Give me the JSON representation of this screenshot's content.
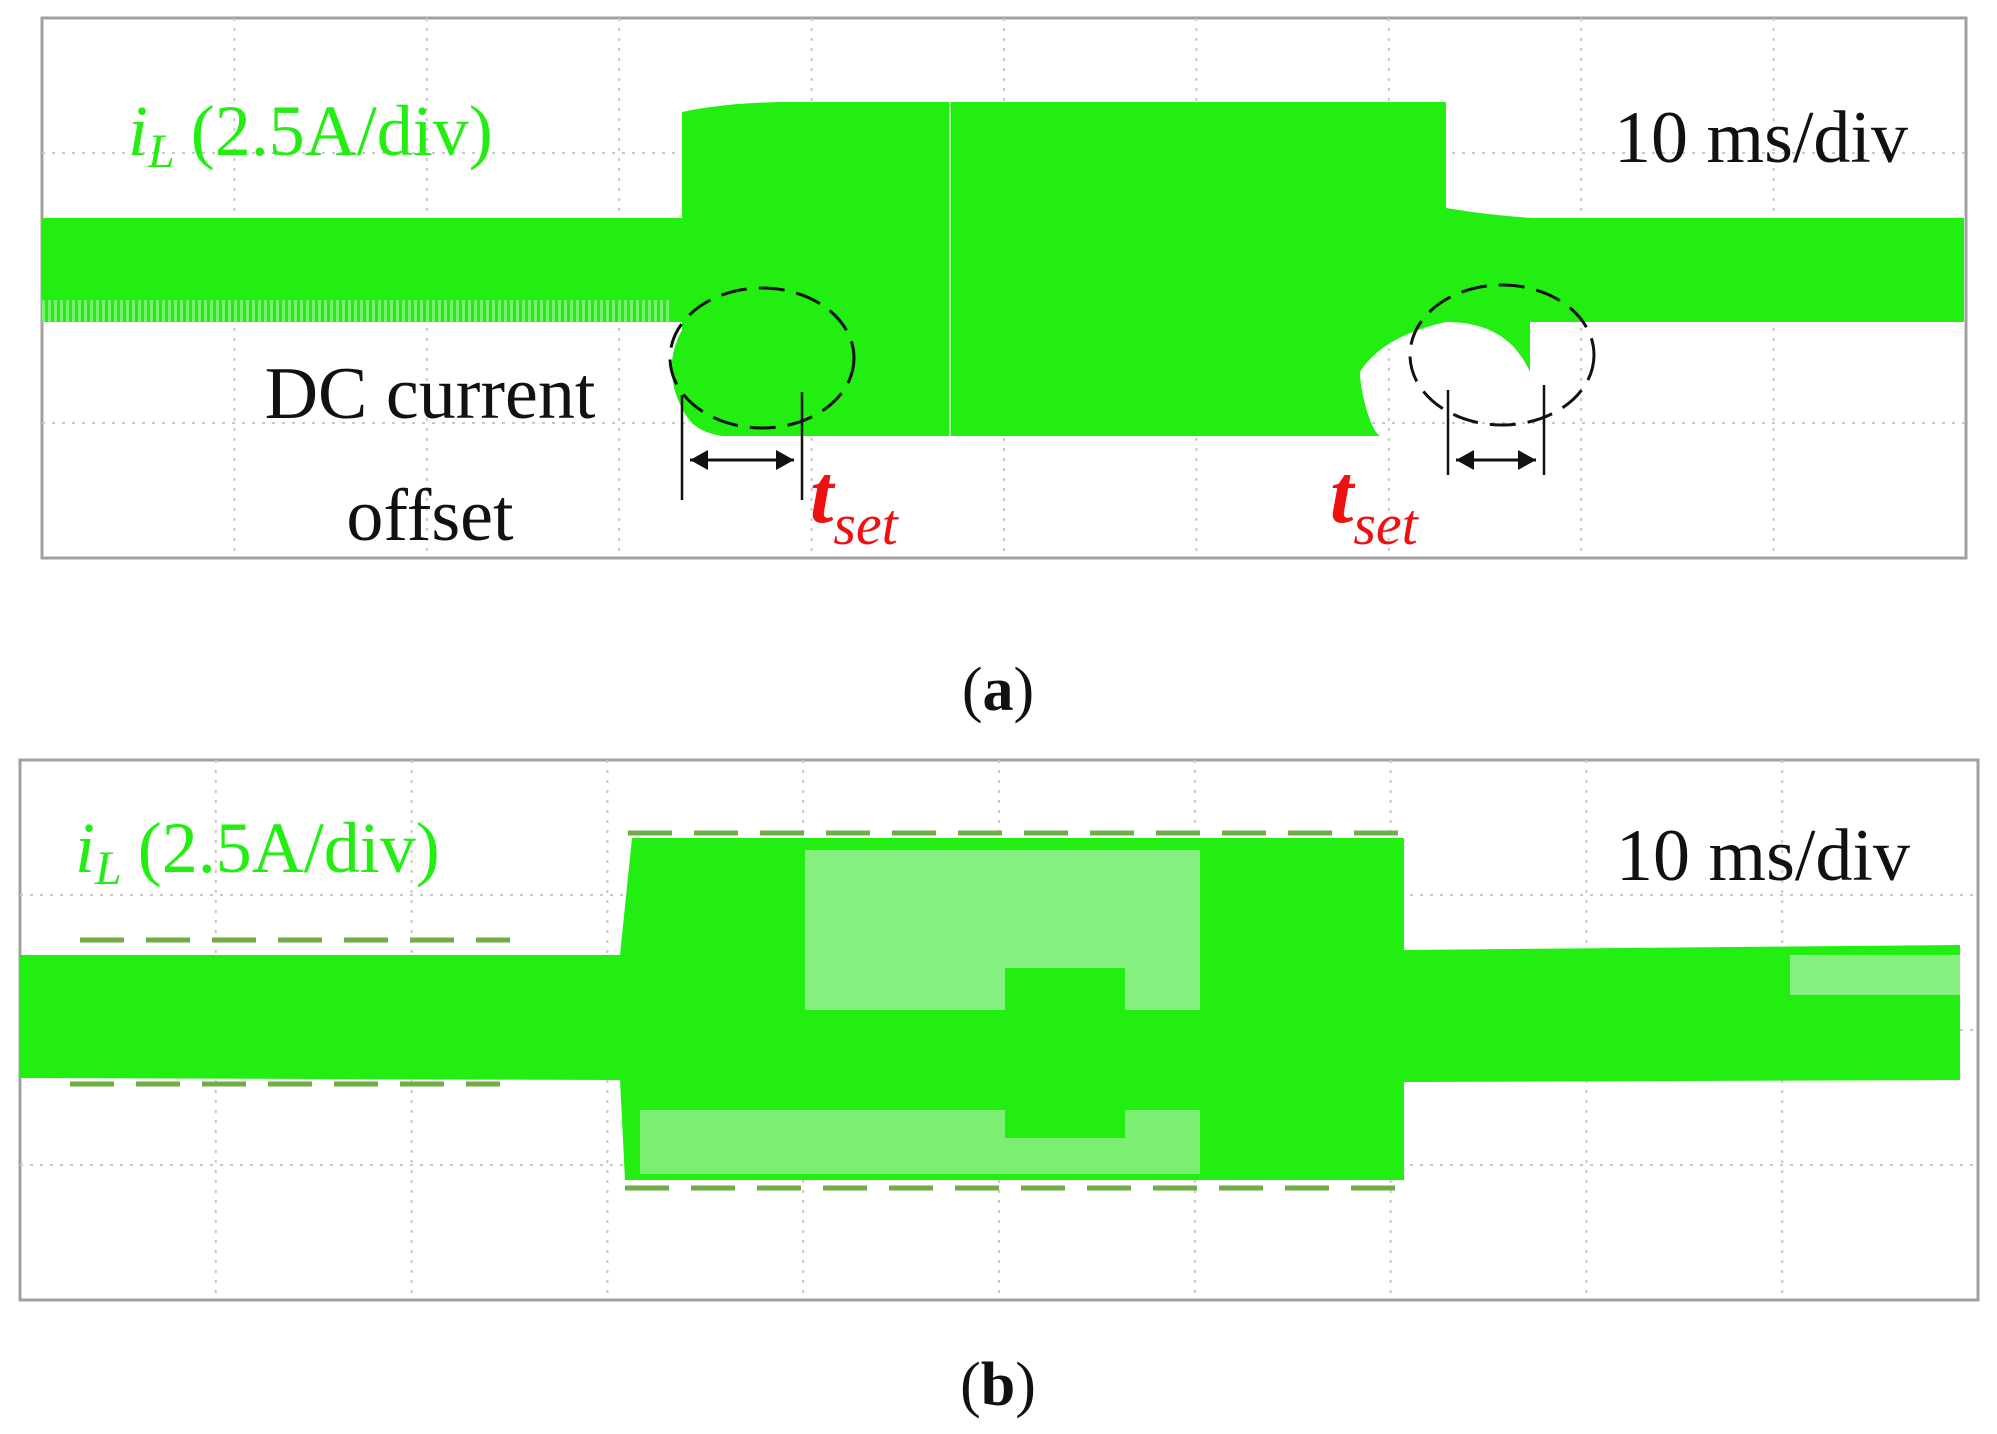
{
  "colors": {
    "trace": "#22ee11",
    "trace_light": "#9ff09a",
    "annotation_red": "#ee1111",
    "dash_guide": "#6fae45",
    "grid": "#c8c8c8",
    "frame": "#a0a0a0",
    "text": "#111111"
  },
  "chart_data": [
    {
      "type": "oscilloscope",
      "panel_caption": "a",
      "channel_label": "i",
      "channel_subscript": "L",
      "channel_scale": "(2.5A/div)",
      "time_scale": "10 ms/div",
      "grid": true,
      "divisions": {
        "x": 10,
        "y": 4
      },
      "envelope": {
        "t": [
          0,
          3.3,
          3.3,
          3.8,
          6.6,
          6.6,
          7.2,
          10
        ],
        "upper": [
          2.05,
          2.05,
          2.75,
          2.82,
          2.82,
          2.05,
          2.05,
          2.05
        ],
        "lower": [
          1.6,
          1.6,
          1.48,
          0.85,
          0.85,
          0.85,
          1.5,
          1.6
        ]
      },
      "annotations": {
        "offset_text_line1": "DC current",
        "offset_text_line2": "offset",
        "settling_label": "t",
        "settling_subscript": "set",
        "settling_intervals": [
          [
            3.3,
            3.9
          ],
          [
            6.6,
            7.1
          ]
        ]
      }
    },
    {
      "type": "oscilloscope",
      "panel_caption": "b",
      "channel_label": "i",
      "channel_subscript": "L",
      "channel_scale": "(2.5A/div)",
      "time_scale": "10 ms/div",
      "grid": true,
      "divisions": {
        "x": 10,
        "y": 4
      },
      "envelope": {
        "t": [
          0,
          3.15,
          3.15,
          7.1,
          7.1,
          10
        ],
        "upper": [
          2.45,
          2.45,
          3.3,
          3.3,
          2.45,
          2.45
        ],
        "lower": [
          1.8,
          1.8,
          0.95,
          0.95,
          1.8,
          1.8
        ]
      },
      "guide_lines": [
        {
          "t": [
            0.3,
            2.5
          ],
          "level": 2.55
        },
        {
          "t": [
            0.3,
            2.5
          ],
          "level": 1.72
        },
        {
          "t": [
            3.15,
            7.0
          ],
          "level": 3.4
        },
        {
          "t": [
            3.15,
            7.0
          ],
          "level": 0.87
        }
      ]
    }
  ]
}
